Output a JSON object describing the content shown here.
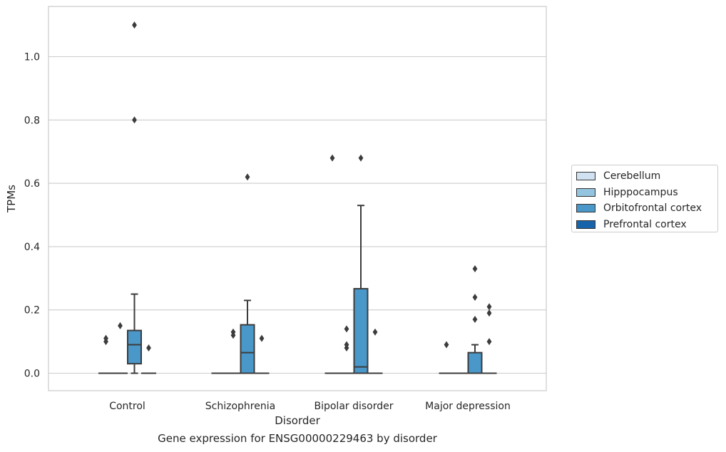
{
  "chart_data": {
    "type": "box",
    "caption": "Gene expression for ENSG00000229463 by disorder",
    "xlabel": "Disorder",
    "ylabel": "TPMs",
    "ylim": [
      -0.05,
      1.16
    ],
    "yticks": [
      "0.0",
      "0.2",
      "0.4",
      "0.6",
      "0.8",
      "1.0"
    ],
    "grid": true,
    "legend_position": "right",
    "categories": [
      "Control",
      "Schizophrenia",
      "Bipolar disorder",
      "Major depression"
    ],
    "series": [
      {
        "name": "Cerebellum",
        "color": "#d0e1f2",
        "boxes": [
          {
            "category": "Control",
            "whislo": 0,
            "q1": 0,
            "med": 0,
            "q3": 0,
            "whishi": 0,
            "fliers": [
              0.1,
              0.11
            ]
          },
          {
            "category": "Schizophrenia",
            "whislo": 0,
            "q1": 0,
            "med": 0,
            "q3": 0,
            "whishi": 0,
            "fliers": []
          },
          {
            "category": "Bipolar disorder",
            "whislo": 0,
            "q1": 0,
            "med": 0,
            "q3": 0,
            "whishi": 0,
            "fliers": [
              0.68
            ]
          },
          {
            "category": "Major depression",
            "whislo": 0,
            "q1": 0,
            "med": 0,
            "q3": 0,
            "whishi": 0,
            "fliers": [
              0.09
            ]
          }
        ]
      },
      {
        "name": "Hipppocampus",
        "color": "#94c4df",
        "boxes": [
          {
            "category": "Control",
            "whislo": 0,
            "q1": 0,
            "med": 0,
            "q3": 0,
            "whishi": 0,
            "fliers": [
              0.15
            ]
          },
          {
            "category": "Schizophrenia",
            "whislo": 0,
            "q1": 0,
            "med": 0,
            "q3": 0,
            "whishi": 0,
            "fliers": [
              0.12,
              0.13
            ]
          },
          {
            "category": "Bipolar disorder",
            "whislo": 0,
            "q1": 0,
            "med": 0,
            "q3": 0,
            "whishi": 0,
            "fliers": [
              0.08,
              0.09,
              0.14
            ]
          },
          {
            "category": "Major depression",
            "whislo": 0,
            "q1": 0,
            "med": 0,
            "q3": 0,
            "whishi": 0,
            "fliers": []
          }
        ]
      },
      {
        "name": "Orbitofrontal cortex",
        "color": "#4a98c9",
        "boxes": [
          {
            "category": "Control",
            "whislo": 0,
            "q1": 0.03,
            "med": 0.09,
            "q3": 0.135,
            "whishi": 0.25,
            "fliers": [
              0.8,
              1.1
            ]
          },
          {
            "category": "Schizophrenia",
            "whislo": 0,
            "q1": 0,
            "med": 0.065,
            "q3": 0.153,
            "whishi": 0.23,
            "fliers": [
              0.62
            ]
          },
          {
            "category": "Bipolar disorder",
            "whislo": 0,
            "q1": 0,
            "med": 0.02,
            "q3": 0.267,
            "whishi": 0.53,
            "fliers": [
              0.68
            ]
          },
          {
            "category": "Major depression",
            "whislo": 0,
            "q1": 0,
            "med": 0,
            "q3": 0.065,
            "whishi": 0.09,
            "fliers": [
              0.17,
              0.24,
              0.33
            ]
          }
        ]
      },
      {
        "name": "Prefrontal cortex",
        "color": "#1764ab",
        "boxes": [
          {
            "category": "Control",
            "whislo": 0,
            "q1": 0,
            "med": 0,
            "q3": 0,
            "whishi": 0,
            "fliers": [
              0.08
            ]
          },
          {
            "category": "Schizophrenia",
            "whislo": 0,
            "q1": 0,
            "med": 0,
            "q3": 0,
            "whishi": 0,
            "fliers": [
              0.11
            ]
          },
          {
            "category": "Bipolar disorder",
            "whislo": 0,
            "q1": 0,
            "med": 0,
            "q3": 0,
            "whishi": 0,
            "fliers": [
              0.13
            ]
          },
          {
            "category": "Major depression",
            "whislo": 0,
            "q1": 0,
            "med": 0,
            "q3": 0,
            "whishi": 0,
            "fliers": [
              0.1,
              0.19,
              0.21
            ]
          }
        ]
      }
    ]
  }
}
